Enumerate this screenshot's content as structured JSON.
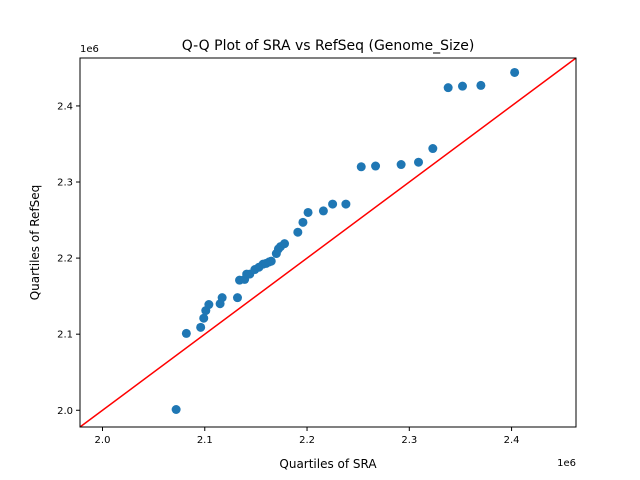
{
  "chart_data": {
    "type": "scatter",
    "title": "Q-Q Plot of SRA vs RefSeq (Genome_Size)",
    "xlabel": "Quartiles of SRA",
    "ylabel": "Quartiles of RefSeq",
    "x_offset_label": "1e6",
    "y_offset_label": "1e6",
    "xlim": [
      1978000,
      2463000
    ],
    "ylim": [
      1978000,
      2463000
    ],
    "x_ticks": [
      2000000,
      2100000,
      2200000,
      2300000,
      2400000
    ],
    "y_ticks": [
      2000000,
      2100000,
      2200000,
      2300000,
      2400000
    ],
    "x_tick_labels": [
      "2.0",
      "2.1",
      "2.2",
      "2.3",
      "2.4"
    ],
    "y_tick_labels": [
      "2.0",
      "2.1",
      "2.2",
      "2.3",
      "2.4"
    ],
    "grid": false,
    "colors": {
      "points": "#1f77b4",
      "reference_line": "#ff0000"
    },
    "reference_line": {
      "type": "y=x"
    },
    "series": [
      {
        "x": [
          2072000,
          2082000,
          2096000,
          2099000,
          2101000,
          2104000,
          2115000,
          2117000,
          2132000,
          2134000,
          2139000,
          2141000,
          2144000,
          2149000,
          2153000,
          2157000,
          2160000,
          2163000,
          2165000,
          2170000,
          2172000,
          2174000,
          2178000,
          2191000,
          2196000,
          2201000,
          2216000,
          2225000,
          2238000,
          2253000,
          2267000,
          2292000,
          2309000,
          2323000,
          2338000,
          2352000,
          2370000,
          2403000
        ],
        "y": [
          2001000,
          2101000,
          2109000,
          2121000,
          2131000,
          2139000,
          2140000,
          2148000,
          2148000,
          2171000,
          2172000,
          2179000,
          2179000,
          2185000,
          2188000,
          2192000,
          2193000,
          2195000,
          2196000,
          2206000,
          2212000,
          2215000,
          2219000,
          2234000,
          2247000,
          2260000,
          2262000,
          2271000,
          2271000,
          2320000,
          2321000,
          2323000,
          2326000,
          2344000,
          2424000,
          2426000,
          2427000,
          2444000
        ]
      }
    ]
  }
}
